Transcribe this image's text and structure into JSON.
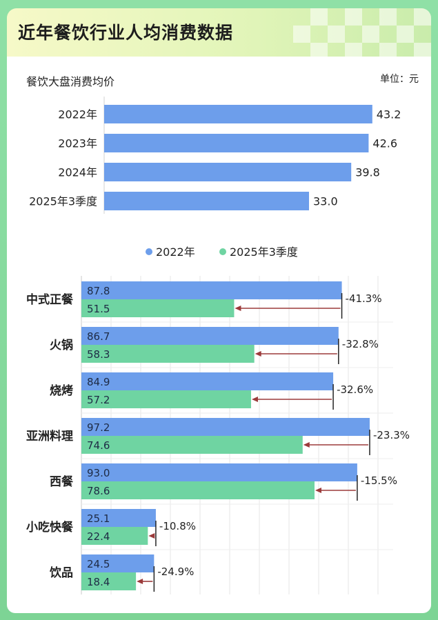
{
  "title": "近年餐饮行业人均消费数据",
  "chart_data": [
    {
      "type": "bar",
      "orientation": "horizontal",
      "title": "餐饮大盘消费均价",
      "unit_label": "单位：元",
      "categories": [
        "2022年",
        "2023年",
        "2024年",
        "2025年3季度"
      ],
      "values": [
        43.2,
        42.6,
        39.8,
        33.0
      ],
      "value_labels": [
        "43.2",
        "42.6",
        "39.8",
        "33.0"
      ],
      "xlim": [
        0,
        45
      ],
      "color": "#6d9eeb"
    },
    {
      "type": "bar",
      "orientation": "horizontal",
      "categories": [
        "中式正餐",
        "火锅",
        "烧烤",
        "亚洲料理",
        "西餐",
        "小吃快餐",
        "饮品"
      ],
      "series": [
        {
          "name": "2022年",
          "color": "#6d9eeb",
          "values": [
            87.8,
            86.7,
            84.9,
            97.2,
            93.0,
            25.1,
            24.5
          ],
          "labels": [
            "87.8",
            "86.7",
            "84.9",
            "97.2",
            "93.0",
            "25.1",
            "24.5"
          ]
        },
        {
          "name": "2025年3季度",
          "color": "#6fd4a2",
          "values": [
            51.5,
            58.3,
            57.2,
            74.6,
            78.6,
            22.4,
            18.4
          ],
          "labels": [
            "51.5",
            "58.3",
            "57.2",
            "74.6",
            "78.6",
            "22.4",
            "18.4"
          ]
        }
      ],
      "change_labels": [
        "-41.3%",
        "-32.8%",
        "-32.6%",
        "-23.3%",
        "-15.5%",
        "-10.8%",
        "-24.9%"
      ],
      "xlim": [
        0,
        100
      ],
      "grid": true,
      "legend_position": "top-center",
      "arrow_color": "#9b3a3a"
    }
  ]
}
